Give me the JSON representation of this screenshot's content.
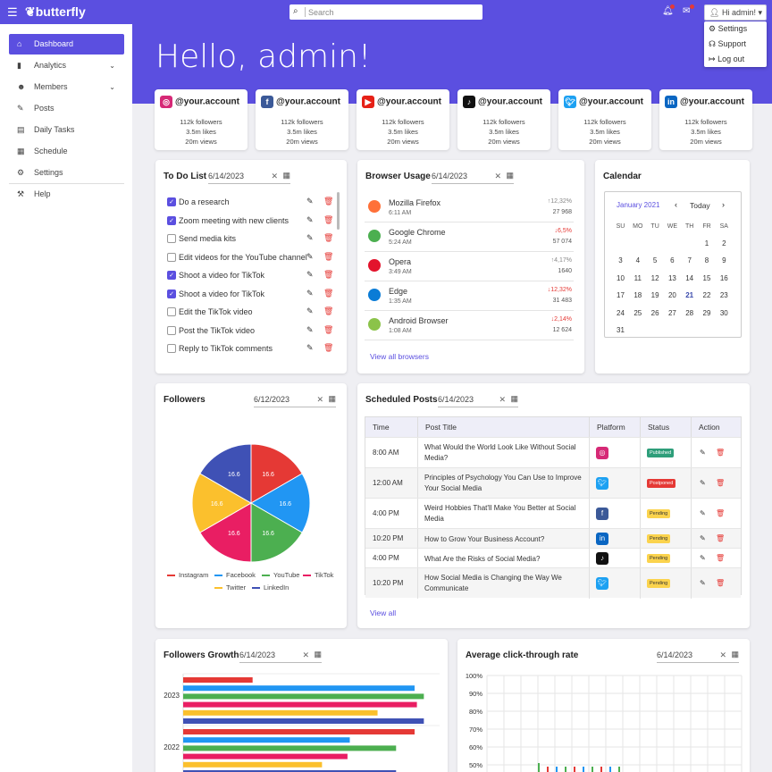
{
  "topbar": {
    "brand": "butterfly",
    "search_placeholder": "Search",
    "user_label": "Hi admin!",
    "menu": [
      "Settings",
      "Support",
      "Log out"
    ]
  },
  "sidebar": {
    "items": [
      {
        "label": "Dashboard",
        "icon": "home-icon"
      },
      {
        "label": "Analytics",
        "icon": "bar-chart-icon"
      },
      {
        "label": "Members",
        "icon": "people-icon"
      },
      {
        "label": "Posts",
        "icon": "pencil-icon"
      },
      {
        "label": "Daily Tasks",
        "icon": "notepad-icon"
      },
      {
        "label": "Schedule",
        "icon": "calendar-icon"
      },
      {
        "label": "Settings",
        "icon": "gear-icon"
      },
      {
        "label": "Help",
        "icon": "tools-icon"
      }
    ]
  },
  "greeting": "Hello, admin!",
  "social": [
    {
      "handle": "@your.account",
      "followers": "112k followers",
      "likes": "3.5m likes",
      "views": "20m views",
      "icon": "instagram-icon",
      "color": "#d62976"
    },
    {
      "handle": "@your.account",
      "followers": "112k followers",
      "likes": "3.5m likes",
      "views": "20m views",
      "icon": "facebook-icon",
      "color": "#3b5998"
    },
    {
      "handle": "@your.account",
      "followers": "112k followers",
      "likes": "3.5m likes",
      "views": "20m views",
      "icon": "youtube-icon",
      "color": "#e62117"
    },
    {
      "handle": "@your.account",
      "followers": "112k followers",
      "likes": "3.5m likes",
      "views": "20m views",
      "icon": "tiktok-icon",
      "color": "#111111"
    },
    {
      "handle": "@your.account",
      "followers": "112k followers",
      "likes": "3.5m likes",
      "views": "20m views",
      "icon": "twitter-icon",
      "color": "#1da1f2"
    },
    {
      "handle": "@your.account",
      "followers": "112k followers",
      "likes": "3.5m likes",
      "views": "20m views",
      "icon": "linkedin-icon",
      "color": "#0a66c2"
    }
  ],
  "todo": {
    "title": "To Do List",
    "date": "6/14/2023",
    "items": [
      {
        "text": "Do a research",
        "done": true
      },
      {
        "text": "Zoom meeting with new clients",
        "done": true
      },
      {
        "text": "Send media kits",
        "done": false
      },
      {
        "text": "Edit videos for the YouTube channel",
        "done": false
      },
      {
        "text": "Shoot a video for TikTok",
        "done": true
      },
      {
        "text": "Shoot a video for TikTok",
        "done": true
      },
      {
        "text": "Edit the TikTok video",
        "done": false
      },
      {
        "text": "Post the TikTok video",
        "done": false
      },
      {
        "text": "Reply to TikTok comments",
        "done": false
      }
    ]
  },
  "browser": {
    "title": "Browser Usage",
    "date": "6/14/2023",
    "view_all": "View all browsers",
    "rows": [
      {
        "name": "Mozilla Firefox",
        "time": "6:11 AM",
        "pct": "↑12,32%",
        "count": "27 968",
        "up": true,
        "color": "#ff7139"
      },
      {
        "name": "Google Chrome",
        "time": "5:24 AM",
        "pct": "↓6,5%",
        "count": "57 074",
        "up": false,
        "color": "#4caf50"
      },
      {
        "name": "Opera",
        "time": "3:49 AM",
        "pct": "↑4,17%",
        "count": "1640",
        "up": true,
        "color": "#e3132c"
      },
      {
        "name": "Edge",
        "time": "1:35 AM",
        "pct": "↓12,32%",
        "count": "31 483",
        "up": false,
        "color": "#0a7cd6"
      },
      {
        "name": "Android Browser",
        "time": "1:08 AM",
        "pct": "↓2,14%",
        "count": "12 624",
        "up": false,
        "color": "#8bc34a"
      }
    ]
  },
  "calendar": {
    "title": "Calendar",
    "month": "January 2021",
    "today": "Today",
    "weekdays": [
      "SU",
      "MO",
      "TU",
      "WE",
      "TH",
      "FR",
      "SA"
    ],
    "first_offset": 5,
    "days": 31,
    "highlight": 21
  },
  "followers": {
    "title": "Followers",
    "date": "6/12/2023"
  },
  "scheduled": {
    "title": "Scheduled Posts",
    "date": "6/14/2023",
    "view_all": "View all",
    "headers": [
      "Time",
      "Post Title",
      "Platform",
      "Status",
      "Action"
    ],
    "rows": [
      {
        "time": "8:00 AM",
        "title": "What Would the World Look Like Without Social Media?",
        "platform": "instagram-icon",
        "status": "Published",
        "sc": "#2e9e7a",
        "sf": "#fff"
      },
      {
        "time": "12:00 AM",
        "title": "Principles of Psychology You Can Use to Improve Your Social Media",
        "platform": "twitter-icon",
        "status": "Postponed",
        "sc": "#e53935",
        "sf": "#fff"
      },
      {
        "time": "4:00 PM",
        "title": "Weird Hobbies That'll Make You Better at Social Media",
        "platform": "facebook-icon",
        "status": "Pending",
        "sc": "#fbd34d",
        "sf": "#333"
      },
      {
        "time": "10:20 PM",
        "title": "How to Grow Your Business Account?",
        "platform": "linkedin-icon",
        "status": "Pending",
        "sc": "#fbd34d",
        "sf": "#333"
      },
      {
        "time": "4:00 PM",
        "title": "What Are the Risks of Social Media?",
        "platform": "tiktok-icon",
        "status": "Pending",
        "sc": "#fbd34d",
        "sf": "#333"
      },
      {
        "time": "10:20 PM",
        "title": "How Social Media is Changing the Way We Communicate",
        "platform": "twitter-icon",
        "status": "Pending",
        "sc": "#fbd34d",
        "sf": "#333"
      }
    ]
  },
  "growth": {
    "title": "Followers Growth",
    "date": "6/14/2023"
  },
  "ctr": {
    "title": "Average click-through rate",
    "date": "6/14/2023"
  },
  "chart_data": [
    {
      "type": "pie",
      "labels": [
        "Instagram",
        "Facebook",
        "YouTube",
        "TikTok",
        "Twitter",
        "LinkedIn"
      ],
      "values": [
        16.6,
        16.6,
        16.6,
        16.6,
        16.6,
        16.6
      ],
      "colors": [
        "#e53935",
        "#2196f3",
        "#4caf50",
        "#e91e63",
        "#fbc02d",
        "#3f51b5"
      ]
    },
    {
      "type": "bar",
      "orientation": "horizontal",
      "categories": [
        "2023",
        "2022"
      ],
      "series": [
        {
          "values": [
            30,
            100
          ]
        },
        {
          "values": [
            100,
            72
          ]
        },
        {
          "values": [
            104,
            92
          ]
        },
        {
          "values": [
            101,
            71
          ]
        },
        {
          "values": [
            84,
            60
          ]
        },
        {
          "values": [
            104,
            92
          ]
        }
      ],
      "colors": [
        "#e53935",
        "#2196f3",
        "#4caf50",
        "#e91e63",
        "#fbc02d",
        "#3f51b5"
      ]
    },
    {
      "type": "bar",
      "yticks": [
        "100%",
        "90%",
        "80%",
        "70%",
        "60%",
        "50%"
      ],
      "ylim": [
        50,
        100
      ]
    }
  ]
}
